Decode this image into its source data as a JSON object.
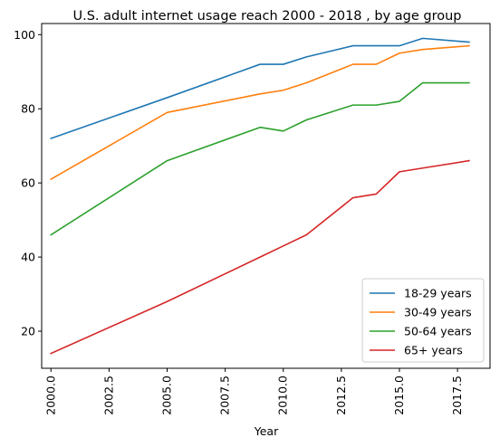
{
  "chart_data": {
    "type": "line",
    "title": "U.S. adult internet usage reach 2000 - 2018 , by age group",
    "xlabel": "Year",
    "ylabel": "",
    "xlim": [
      1999.6,
      2018.9
    ],
    "ylim": [
      10,
      103
    ],
    "x_ticks": [
      2000.0,
      2002.5,
      2005.0,
      2007.5,
      2010.0,
      2012.5,
      2015.0,
      2017.5
    ],
    "x_tick_labels": [
      "2000.0",
      "2002.5",
      "2005.0",
      "2007.5",
      "2010.0",
      "2012.5",
      "2015.0",
      "2017.5"
    ],
    "y_ticks": [
      20,
      40,
      60,
      80,
      100
    ],
    "y_tick_labels": [
      "20",
      "40",
      "60",
      "80",
      "100"
    ],
    "grid": false,
    "legend_position": "lower-right",
    "x": [
      2000,
      2005,
      2009,
      2010,
      2011,
      2013,
      2014,
      2015,
      2016,
      2018
    ],
    "series": [
      {
        "name": "18-29 years",
        "color": "#1f77b4",
        "values": [
          72,
          83,
          92,
          92,
          94,
          97,
          97,
          97,
          99,
          98
        ]
      },
      {
        "name": "30-49 years",
        "color": "#ff7f0e",
        "values": [
          61,
          79,
          84,
          85,
          87,
          92,
          92,
          95,
          96,
          97
        ]
      },
      {
        "name": "50-64 years",
        "color": "#2ca02c",
        "values": [
          46,
          66,
          75,
          74,
          77,
          81,
          81,
          82,
          87,
          87
        ]
      },
      {
        "name": "65+ years",
        "color": "#d62728",
        "values": [
          14,
          28,
          40,
          43,
          46,
          56,
          57,
          63,
          64,
          66
        ]
      }
    ]
  }
}
